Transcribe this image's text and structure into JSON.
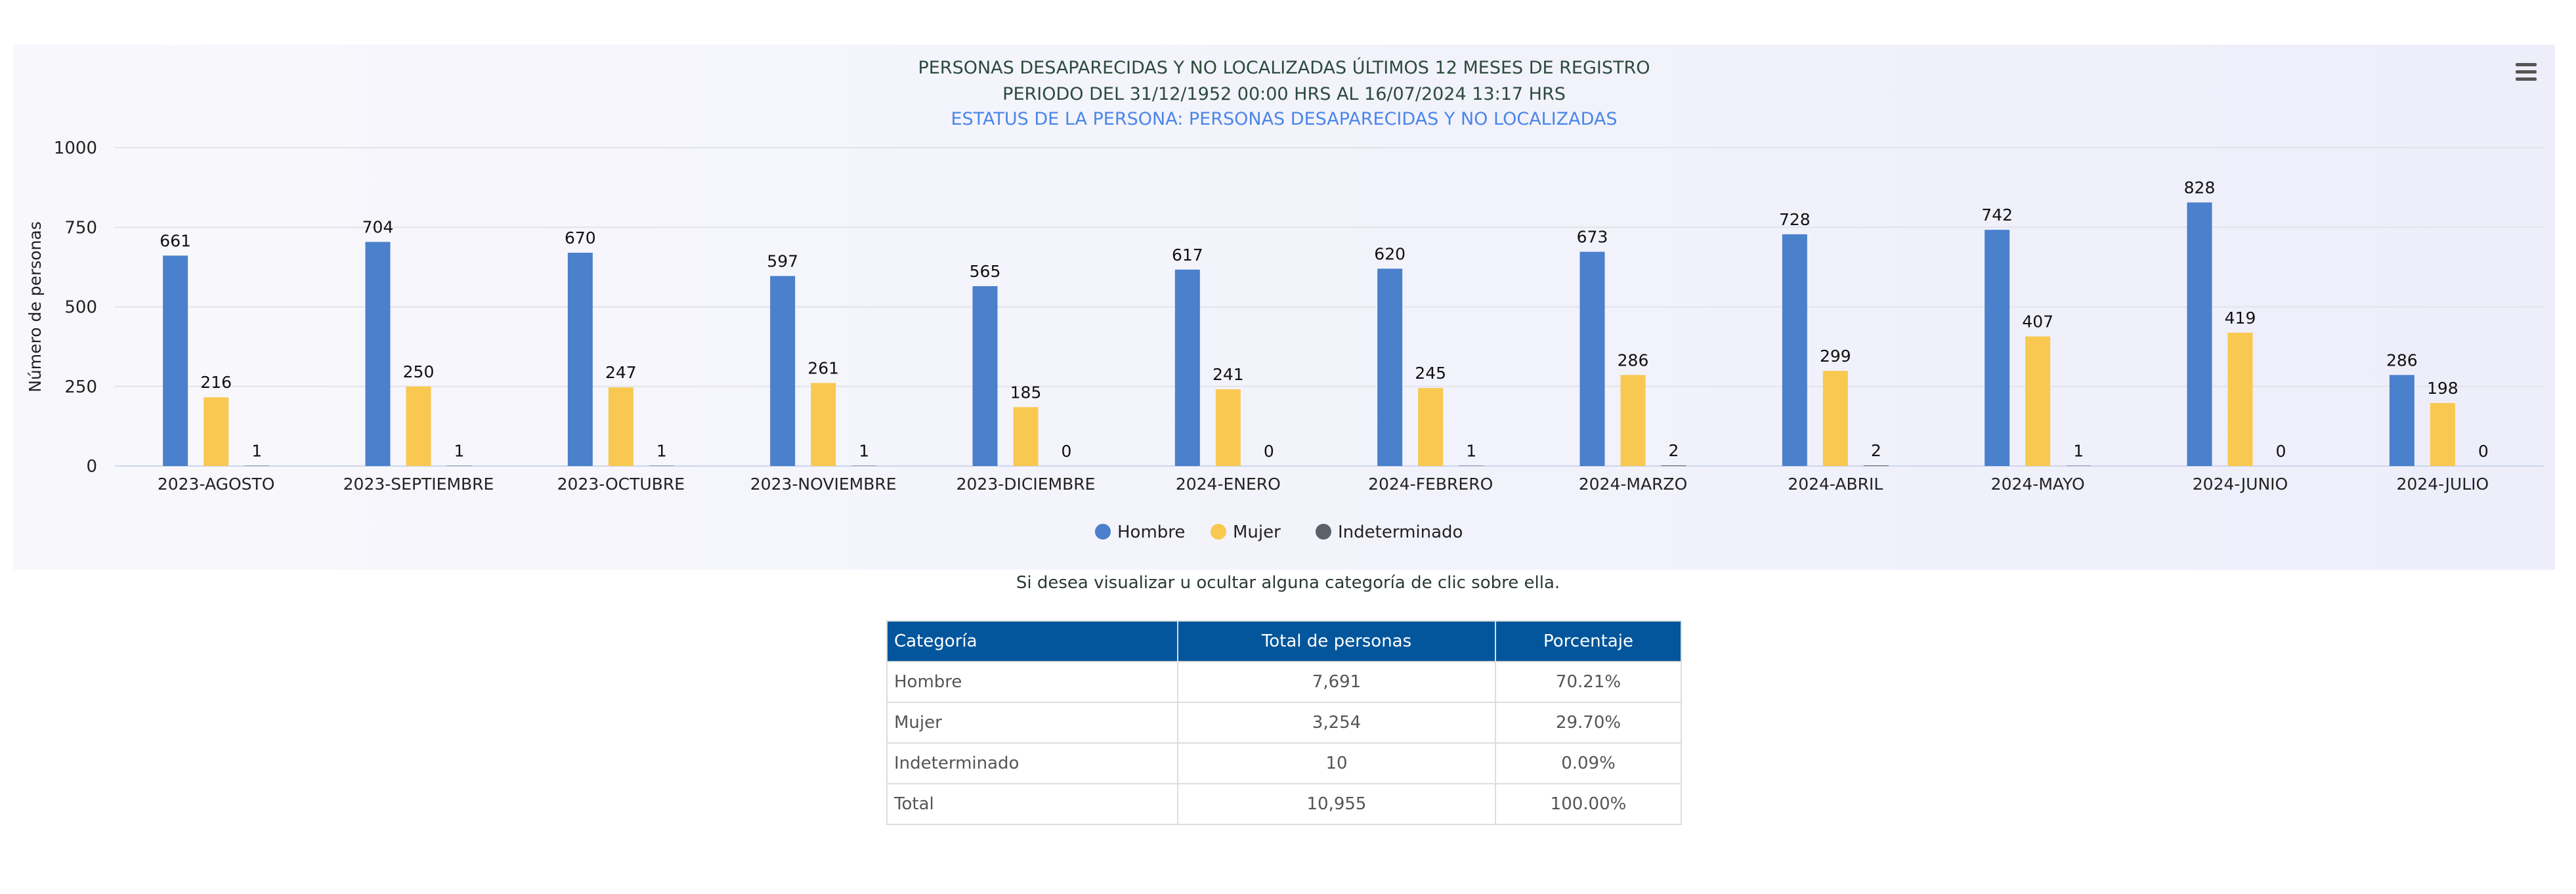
{
  "chart_data": {
    "type": "bar",
    "title": "PERSONAS DESAPARECIDAS Y NO LOCALIZADAS ÚLTIMOS 12 MESES DE REGISTRO",
    "subtitle": "PERIODO DEL 31/12/1952 00:00 HRS AL 16/07/2024 13:17 HRS",
    "subtitle2": "ESTATUS DE LA PERSONA: PERSONAS DESAPARECIDAS Y NO LOCALIZADAS",
    "ylabel": "Número de personas",
    "ylim": [
      0,
      1000
    ],
    "yticks": [
      0,
      250,
      500,
      750,
      1000
    ],
    "grid": true,
    "legend_position": "bottom",
    "categories": [
      "2023-AGOSTO",
      "2023-SEPTIEMBRE",
      "2023-OCTUBRE",
      "2023-NOVIEMBRE",
      "2023-DICIEMBRE",
      "2024-ENERO",
      "2024-FEBRERO",
      "2024-MARZO",
      "2024-ABRIL",
      "2024-MAYO",
      "2024-JUNIO",
      "2024-JULIO"
    ],
    "series": [
      {
        "name": "Hombre",
        "color": "#4a80cc",
        "values": [
          661,
          704,
          670,
          597,
          565,
          617,
          620,
          673,
          728,
          742,
          828,
          286
        ]
      },
      {
        "name": "Mujer",
        "color": "#f9c851",
        "values": [
          216,
          250,
          247,
          261,
          185,
          241,
          245,
          286,
          299,
          407,
          419,
          198
        ]
      },
      {
        "name": "Indeterminado",
        "color": "#5c6068",
        "values": [
          1,
          1,
          1,
          1,
          0,
          0,
          1,
          2,
          2,
          1,
          0,
          0
        ]
      }
    ],
    "title_color": "#2b4a3e",
    "subtitle2_color": "#4a86e8"
  },
  "hint": "Si desea visualizar u ocultar alguna categoría de clic sobre ella.",
  "table": {
    "headers": [
      "Categoría",
      "Total de personas",
      "Porcentaje"
    ],
    "rows": [
      [
        "Hombre",
        "7,691",
        "70.21%"
      ],
      [
        "Mujer",
        "3,254",
        "29.70%"
      ],
      [
        "Indeterminado",
        "10",
        "0.09%"
      ],
      [
        "Total",
        "10,955",
        "100.00%"
      ]
    ],
    "header_color": "#03569b"
  }
}
